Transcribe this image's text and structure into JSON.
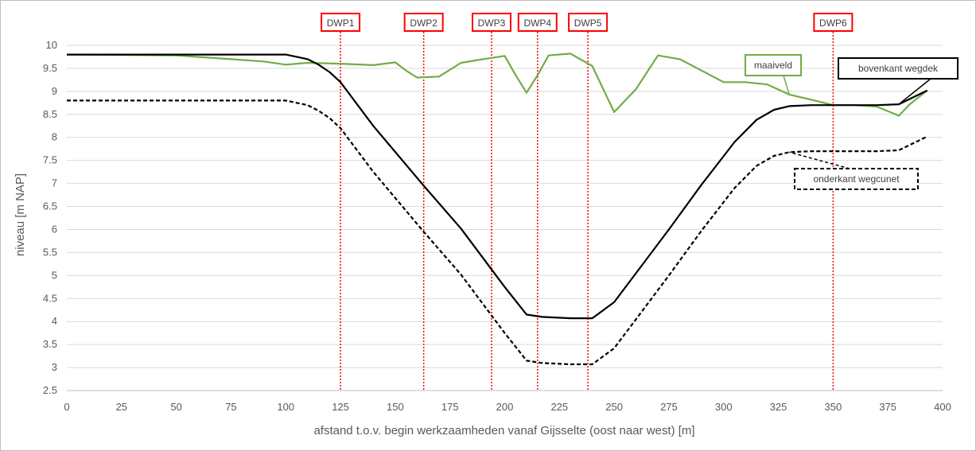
{
  "chart_data": {
    "type": "line",
    "title": "",
    "xlabel": "afstand t.o.v. begin werkzaamheden vanaf Gijsselte (oost naar west) [m]",
    "ylabel": "niveau [m NAP]",
    "xlim": [
      0,
      400
    ],
    "ylim": [
      2.5,
      10
    ],
    "xticks": [
      "0",
      "25",
      "50",
      "75",
      "100",
      "125",
      "150",
      "175",
      "200",
      "225",
      "250",
      "275",
      "300",
      "325",
      "350",
      "375",
      "400"
    ],
    "yticks": [
      "2.5",
      "3",
      "3.5",
      "4",
      "4.5",
      "5",
      "5.5",
      "6",
      "6.5",
      "7",
      "7.5",
      "8",
      "8.5",
      "9",
      "9.5",
      "10"
    ],
    "grid": "horizontal",
    "series": [
      {
        "name": "maaiveld",
        "color": "#70ad47",
        "style": "solid",
        "x": [
          0,
          50,
          75,
          90,
          100,
          110,
          125,
          140,
          150,
          155,
          160,
          170,
          180,
          190,
          200,
          205,
          210,
          215,
          220,
          230,
          240,
          250,
          260,
          270,
          280,
          290,
          300,
          310,
          320,
          330,
          340,
          350,
          360,
          370,
          380,
          385,
          393
        ],
        "y": [
          9.8,
          9.78,
          9.7,
          9.65,
          9.58,
          9.62,
          9.6,
          9.57,
          9.63,
          9.45,
          9.3,
          9.32,
          9.62,
          9.7,
          9.77,
          9.35,
          8.97,
          9.35,
          9.78,
          9.82,
          9.55,
          8.55,
          9.05,
          9.78,
          9.7,
          9.45,
          9.2,
          9.2,
          9.15,
          8.93,
          8.82,
          8.7,
          8.7,
          8.67,
          8.47,
          8.72,
          9.02
        ]
      },
      {
        "name": "bovenkant wegdek",
        "color": "#000000",
        "style": "solid",
        "x": [
          0,
          100,
          110,
          115,
          120,
          125,
          140,
          163,
          180,
          200,
          205,
          210,
          217,
          230,
          240,
          250,
          260,
          275,
          290,
          305,
          315,
          323,
          330,
          340,
          350,
          360,
          370,
          380,
          393
        ],
        "y": [
          9.8,
          9.8,
          9.7,
          9.58,
          9.42,
          9.2,
          8.25,
          6.95,
          6.02,
          4.75,
          4.45,
          4.15,
          4.1,
          4.07,
          4.07,
          4.42,
          5.05,
          6.0,
          6.98,
          7.9,
          8.38,
          8.6,
          8.68,
          8.7,
          8.7,
          8.7,
          8.7,
          8.72,
          9.02
        ]
      },
      {
        "name": "onderkant wegcunet",
        "color": "#000000",
        "style": "dashed",
        "x": [
          0,
          100,
          110,
          115,
          120,
          125,
          140,
          163,
          180,
          200,
          205,
          210,
          217,
          230,
          240,
          250,
          260,
          275,
          290,
          305,
          315,
          323,
          330,
          340,
          350,
          360,
          370,
          380,
          393
        ],
        "y": [
          8.8,
          8.8,
          8.7,
          8.58,
          8.42,
          8.2,
          7.25,
          5.95,
          5.02,
          3.75,
          3.45,
          3.15,
          3.1,
          3.07,
          3.07,
          3.42,
          4.05,
          5.0,
          5.98,
          6.9,
          7.38,
          7.6,
          7.68,
          7.7,
          7.7,
          7.7,
          7.7,
          7.72,
          8.02
        ]
      }
    ],
    "markers": [
      {
        "label": "DWP1",
        "x": 125
      },
      {
        "label": "DWP2",
        "x": 163
      },
      {
        "label": "DWP3",
        "x": 194
      },
      {
        "label": "DWP4",
        "x": 215
      },
      {
        "label": "DWP5",
        "x": 238
      },
      {
        "label": "DWP6",
        "x": 350
      }
    ],
    "annotations": [
      {
        "label": "maaiveld",
        "color": "#70ad47",
        "border": "solid"
      },
      {
        "label": "bovenkant wegdek",
        "color": "#000000",
        "border": "solid"
      },
      {
        "label": "onderkant wegcunet",
        "color": "#000000",
        "border": "dashed"
      }
    ],
    "colors": {
      "marker": "#ff0000",
      "grid": "#d9d9d9",
      "tick_text": "#595959",
      "frame": "#bfbfbf"
    }
  }
}
